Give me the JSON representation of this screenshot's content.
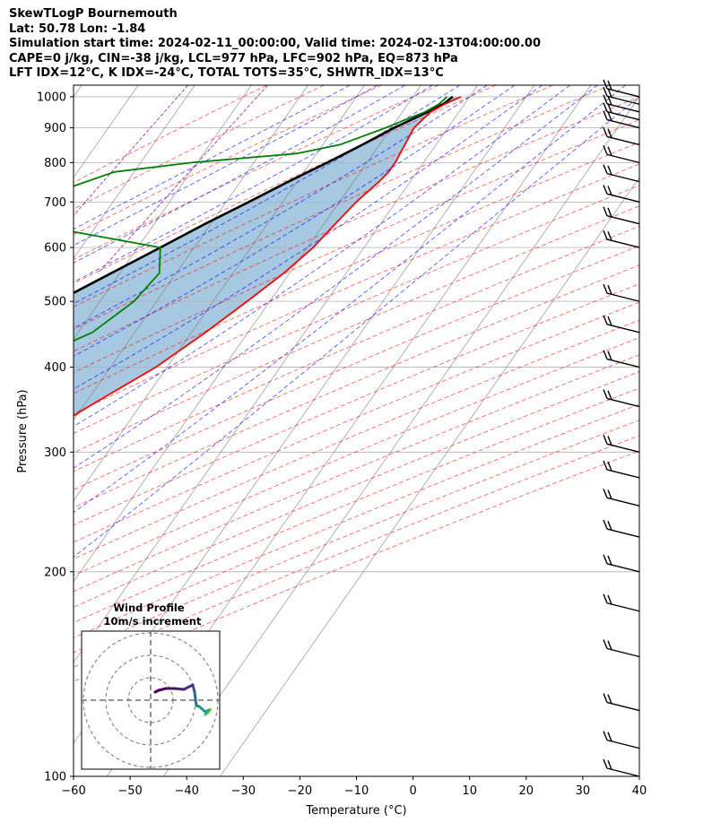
{
  "header": {
    "line1": "SkewTLogP Bournemouth",
    "line2": "Lat: 50.78   Lon: -1.84",
    "line3": "Simulation start time: 2024-02-11_00:00:00, Valid time: 2024-02-13T04:00:00.00",
    "line4": "CAPE=0 j/kg, CIN=-38 j/kg, LCL=977 hPa, LFC=902 hPa, EQ=873 hPa",
    "line5": "LFT IDX=12°C, K IDX=-24°C, TOTAL TOTS=35°C, SHWTR_IDX=13°C"
  },
  "axes": {
    "xlabel": "Temperature (°C)",
    "ylabel": "Pressure (hPa)"
  },
  "hodograph": {
    "title": "Wind Profile",
    "subtitle": "10m/s increment"
  },
  "chart_data": {
    "type": "line",
    "subtype": "skew-t log-p",
    "xlim": [
      -60,
      40
    ],
    "ylim": [
      1040,
      100
    ],
    "y_scale": "log",
    "grid": true,
    "x_ticks": [
      -60,
      -50,
      -40,
      -30,
      -20,
      -10,
      0,
      10,
      20,
      30,
      40
    ],
    "y_ticks": [
      1000,
      900,
      800,
      700,
      600,
      500,
      400,
      300,
      200,
      100
    ],
    "reference_lines": {
      "dry_adiabats_color": "#ff0000",
      "moist_adiabats_color": "#0000ff",
      "mixing_ratio_color": "#800080",
      "isotherm_color": "#808080"
    },
    "series": [
      {
        "color": "#ff0000",
        "points": [
          [
            1000,
            8.5
          ],
          [
            975,
            6.5
          ],
          [
            950,
            5.0
          ],
          [
            925,
            4.5
          ],
          [
            900,
            4.0
          ],
          [
            850,
            4.5
          ],
          [
            800,
            5.0
          ],
          [
            775,
            5.0
          ],
          [
            750,
            4.5
          ],
          [
            700,
            3.0
          ],
          [
            650,
            2.0
          ],
          [
            600,
            1.0
          ],
          [
            550,
            -1.0
          ],
          [
            500,
            -4.0
          ],
          [
            450,
            -7.5
          ],
          [
            400,
            -12.0
          ],
          [
            350,
            -19.0
          ],
          [
            300,
            -26.5
          ],
          [
            275,
            -31.0
          ],
          [
            250,
            -34.5
          ],
          [
            225,
            -38.5
          ],
          [
            200,
            -43.0
          ],
          [
            175,
            -46.5
          ],
          [
            150,
            -49.5
          ],
          [
            140,
            -51.0
          ],
          [
            125,
            -54.0
          ],
          [
            110,
            -56.0
          ],
          [
            100,
            -57.5
          ]
        ]
      },
      {
        "color": "#008000",
        "points": [
          [
            1000,
            6.0
          ],
          [
            975,
            5.5
          ],
          [
            950,
            4.0
          ],
          [
            925,
            1.5
          ],
          [
            900,
            -1.0
          ],
          [
            850,
            -7.0
          ],
          [
            825,
            -13.5
          ],
          [
            800,
            -31.0
          ],
          [
            775,
            -43.5
          ],
          [
            700,
            -55.0
          ],
          [
            650,
            -52.0
          ],
          [
            600,
            -26.0
          ],
          [
            550,
            -23.0
          ],
          [
            500,
            -24.0
          ],
          [
            450,
            -27.5
          ],
          [
            400,
            -37.0
          ],
          [
            350,
            -41.0
          ],
          [
            300,
            -46.0
          ],
          [
            275,
            -51.5
          ],
          [
            250,
            -56.5
          ],
          [
            225,
            -59.0
          ],
          [
            200,
            -60.5
          ],
          [
            185,
            -66.0
          ],
          [
            175,
            -70.0
          ],
          [
            150,
            -72.0
          ],
          [
            125,
            -72.5
          ],
          [
            100,
            -73.5
          ]
        ]
      },
      {
        "color": "#000000",
        "points": [
          [
            1000,
            7.0
          ],
          [
            977,
            6.3
          ],
          [
            950,
            4.5
          ],
          [
            900,
            0.5
          ],
          [
            850,
            -3.0
          ],
          [
            800,
            -7.0
          ],
          [
            750,
            -11.5
          ],
          [
            700,
            -16.0
          ],
          [
            650,
            -21.0
          ],
          [
            600,
            -26.0
          ],
          [
            550,
            -31.5
          ],
          [
            500,
            -37.5
          ],
          [
            450,
            -44.0
          ],
          [
            400,
            -51.0
          ],
          [
            350,
            -59.0
          ],
          [
            300,
            -67.5
          ],
          [
            250,
            -78.0
          ],
          [
            200,
            -90.0
          ],
          [
            150,
            -103.0
          ],
          [
            125,
            -111.0
          ],
          [
            100,
            -121.0
          ]
        ]
      }
    ],
    "shaded_area": {
      "between": [
        "temperature",
        "parcel"
      ],
      "color": "#a6c8e0"
    },
    "wind_barbs_pressures": [
      1000,
      975,
      950,
      925,
      900,
      850,
      800,
      750,
      700,
      650,
      600,
      500,
      450,
      400,
      350,
      300,
      275,
      250,
      225,
      200,
      175,
      150,
      125,
      110,
      100
    ]
  }
}
